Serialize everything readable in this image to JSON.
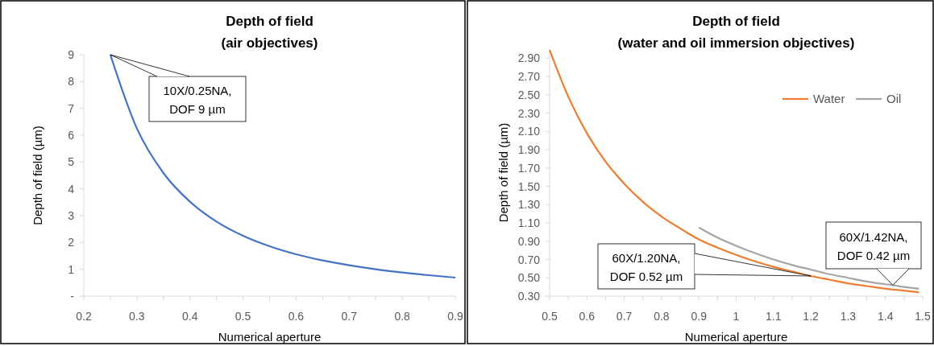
{
  "chart_data": [
    {
      "type": "line",
      "title": "Depth of field\n(air objectives)",
      "xlabel": "Numerical aperture",
      "ylabel": "Depth of field (µm)",
      "x": [
        0.25,
        0.3,
        0.35,
        0.4,
        0.45,
        0.5,
        0.55,
        0.6,
        0.65,
        0.7,
        0.75,
        0.8,
        0.85,
        0.9
      ],
      "series": [
        {
          "color": "#4472c4",
          "values": [
            9,
            6.25,
            4.59,
            3.52,
            2.78,
            2.25,
            1.86,
            1.56,
            1.33,
            1.15,
            1.0,
            0.88,
            0.78,
            0.69
          ]
        }
      ],
      "xlim": [
        0.2,
        0.9
      ],
      "ylim": [
        0,
        9
      ],
      "xticks": [
        0.2,
        {
          "value": 0.25,
          "label": null
        },
        0.3,
        {
          "value": 0.35,
          "label": null
        },
        0.4,
        {
          "value": 0.45,
          "label": null
        },
        0.5,
        {
          "value": 0.55,
          "label": null
        },
        0.6,
        {
          "value": 0.65,
          "label": null
        },
        0.7,
        {
          "value": 0.75,
          "label": null
        },
        0.8,
        {
          "value": 0.85,
          "label": null
        },
        0.9
      ],
      "yticks": [
        {
          "value": 0,
          "label": "-"
        },
        1,
        2,
        3,
        4,
        5,
        6,
        7,
        8,
        9
      ],
      "annotations": [
        {
          "text": "10X/0.25NA,\nDOF 9 µm",
          "x": 0.25,
          "y": 9
        }
      ]
    },
    {
      "type": "line",
      "title": "Depth of field\n(water and oil immersion objectives)",
      "xlabel": "Numerical aperture",
      "ylabel": "Depth of field (µm)",
      "legend": "top right",
      "series": [
        {
          "name": "Water",
          "color": "#ed7d31",
          "x": [
            0.5,
            0.55,
            0.6,
            0.65,
            0.7,
            0.75,
            0.8,
            0.85,
            0.9,
            0.95,
            1.0,
            1.05,
            1.1,
            1.15,
            1.2,
            1.25,
            1.3,
            1.35,
            1.4,
            1.45,
            1.49
          ],
          "values": [
            2.99,
            2.48,
            2.08,
            1.77,
            1.53,
            1.33,
            1.17,
            1.04,
            0.92,
            0.83,
            0.75,
            0.68,
            0.62,
            0.57,
            0.52,
            0.48,
            0.44,
            0.41,
            0.38,
            0.36,
            0.34
          ]
        },
        {
          "name": "Oil",
          "color": "#a5a5a5",
          "x": [
            0.9,
            0.95,
            1.0,
            1.05,
            1.1,
            1.15,
            1.2,
            1.25,
            1.3,
            1.35,
            1.4,
            1.42,
            1.45,
            1.49
          ],
          "values": [
            1.05,
            0.94,
            0.85,
            0.77,
            0.7,
            0.64,
            0.59,
            0.54,
            0.5,
            0.46,
            0.43,
            0.42,
            0.4,
            0.38
          ]
        }
      ],
      "xlim": [
        0.5,
        1.5
      ],
      "ylim": [
        0.3,
        3.0
      ],
      "xticks": [
        0.5,
        {
          "value": 0.55,
          "label": null
        },
        0.6,
        {
          "value": 0.65,
          "label": null
        },
        0.7,
        {
          "value": 0.75,
          "label": null
        },
        0.8,
        {
          "value": 0.85,
          "label": null
        },
        0.9,
        {
          "value": 0.95,
          "label": null
        },
        1,
        {
          "value": 1.05,
          "label": null
        },
        1.1,
        {
          "value": 1.15,
          "label": null
        },
        1.2,
        {
          "value": 1.25,
          "label": null
        },
        1.3,
        {
          "value": 1.35,
          "label": null
        },
        1.4,
        {
          "value": 1.45,
          "label": null
        },
        1.5
      ],
      "yticks": [
        {
          "value": 0.3,
          "label": "0.30"
        },
        {
          "value": 0.5,
          "label": "0.50"
        },
        {
          "value": 0.7,
          "label": "0.70"
        },
        {
          "value": 0.9,
          "label": "0.90"
        },
        {
          "value": 1.1,
          "label": "1.10"
        },
        {
          "value": 1.3,
          "label": "1.30"
        },
        {
          "value": 1.5,
          "label": "1.50"
        },
        {
          "value": 1.7,
          "label": "1.70"
        },
        {
          "value": 1.9,
          "label": "1.90"
        },
        {
          "value": 2.1,
          "label": "2.10"
        },
        {
          "value": 2.3,
          "label": "2.30"
        },
        {
          "value": 2.5,
          "label": "2.50"
        },
        {
          "value": 2.7,
          "label": "2.70"
        },
        {
          "value": 2.9,
          "label": "2.90"
        }
      ],
      "annotations": [
        {
          "text": "60X/1.20NA,\nDOF 0.52 µm",
          "x": 1.2,
          "y": 0.52
        },
        {
          "text": "60X/1.42NA,\nDOF 0.42 µm",
          "x": 1.42,
          "y": 0.42
        }
      ]
    }
  ]
}
